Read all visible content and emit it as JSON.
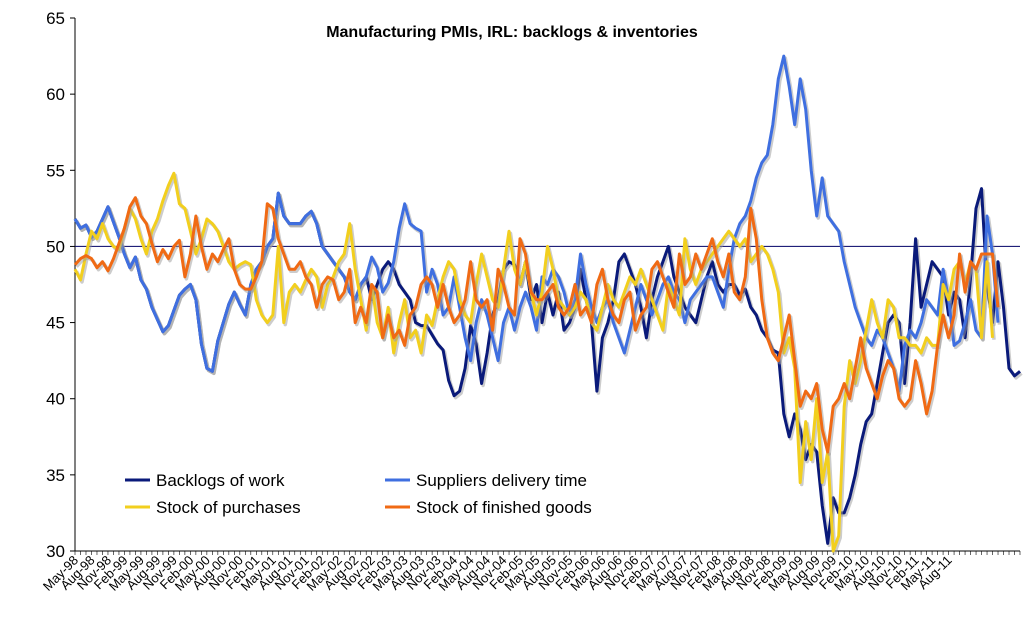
{
  "chart_data": {
    "type": "line",
    "title": "Manufacturing PMIs, IRL: backlogs & inventories",
    "xlabel": "",
    "ylabel": "",
    "ylim": [
      30,
      65
    ],
    "y_ticks": [
      "30",
      "35",
      "40",
      "45",
      "50",
      "55",
      "60",
      "65"
    ],
    "reference_line": 50,
    "x_tick_labels": [
      "May-98",
      "Aug-98",
      "Nov-98",
      "Feb-99",
      "May-99",
      "Aug-99",
      "Nov-99",
      "Feb-00",
      "May-00",
      "Aug-00",
      "Nov-00",
      "Feb-01",
      "May-01",
      "Aug-01",
      "Nov-01",
      "Feb-02",
      "May-02",
      "Aug-02",
      "Nov-02",
      "Feb-03",
      "May-03",
      "Aug-03",
      "Nov-03",
      "Feb-04",
      "May-04",
      "Aug-04",
      "Nov-04",
      "Feb-05",
      "May-05",
      "Aug-05",
      "Nov-05",
      "Feb-06",
      "May-06",
      "Aug-06",
      "Nov-06",
      "Feb-07",
      "May-07",
      "Aug-07",
      "Nov-07",
      "Feb-08",
      "May-08",
      "Aug-08",
      "Nov-08",
      "Feb-09",
      "May-09",
      "Aug-09",
      "Nov-09",
      "Feb-10",
      "May-10",
      "Aug-10",
      "Nov-10",
      "Feb-11",
      "May-11",
      "Aug-11"
    ],
    "legend_position": "bottom-left",
    "colors": {
      "backlogs": "#0a1a7a",
      "suppliers": "#3f6fe0",
      "purchases": "#f2cf1e",
      "finished": "#f06a14",
      "refline": "#000066"
    },
    "series": [
      {
        "name": "Backlogs of work",
        "key": "backlogs",
        "values": [
          51.8,
          51.2,
          51.4,
          50.6,
          51.0,
          51.8,
          52.6,
          51.6,
          50.6,
          49.5,
          48.6,
          49.3,
          47.8,
          47.2,
          46.0,
          45.2,
          44.4,
          44.8,
          45.8,
          46.8,
          47.2,
          47.5,
          46.5,
          43.6,
          42.0,
          41.8,
          43.8,
          45.0,
          46.2,
          47.0,
          46.2,
          45.5,
          47.5,
          48.5,
          49.0,
          50.0,
          50.5,
          53.5,
          52.0,
          51.5,
          51.5,
          51.5,
          52.0,
          52.3,
          51.5,
          50.0,
          49.5,
          49.0,
          48.5,
          48.0,
          47.0,
          46.5,
          47.5,
          48.0,
          46.5,
          47.5,
          48.5,
          49.0,
          48.5,
          47.5,
          47.0,
          46.5,
          45.0,
          44.8,
          44.8,
          44.2,
          43.6,
          43.2,
          41.2,
          40.2,
          40.5,
          42.0,
          44.8,
          43.6,
          41.0,
          43.0,
          45.5,
          46.5,
          48.5,
          49.0,
          48.8,
          47.5,
          49.0,
          46.5,
          47.5,
          45.0,
          47.0,
          45.5,
          47.0,
          44.5,
          45.0,
          46.0,
          48.5,
          46.5,
          45.0,
          40.5,
          44.0,
          45.0,
          46.5,
          49.0,
          49.5,
          48.5,
          47.5,
          46.0,
          44.0,
          46.5,
          48.0,
          49.0,
          50.0,
          48.0,
          47.0,
          46.0,
          45.5,
          45.0,
          46.5,
          48.0,
          49.0,
          47.5,
          47.0,
          47.5,
          47.5,
          46.8,
          47.2,
          46.0,
          45.5,
          44.5,
          44.0,
          43.2,
          43.0,
          39.0,
          37.5,
          39.0,
          38.0,
          36.0,
          37.0,
          36.5,
          33.0,
          30.5,
          33.5,
          32.5,
          32.5,
          33.5,
          35.0,
          37.0,
          38.5,
          39.0,
          41.0,
          43.0,
          45.0,
          45.5,
          45.0,
          41.0,
          45.0,
          50.5,
          46.0,
          47.5,
          49.0,
          48.5,
          48.0,
          45.5,
          47.0,
          46.5,
          44.0,
          48.0,
          52.5,
          53.8,
          47.5,
          45.0,
          49.0,
          46.0,
          42.0,
          41.5,
          41.8
        ]
      },
      {
        "name": "Suppliers delivery time",
        "key": "suppliers",
        "values": [
          51.8,
          51.2,
          51.4,
          50.6,
          51.0,
          51.8,
          52.6,
          51.6,
          50.6,
          49.5,
          48.6,
          49.3,
          47.8,
          47.2,
          46.0,
          45.2,
          44.4,
          44.8,
          45.8,
          46.8,
          47.2,
          47.5,
          46.5,
          43.6,
          42.0,
          41.8,
          43.8,
          45.0,
          46.2,
          47.0,
          46.2,
          45.5,
          47.5,
          48.5,
          49.0,
          50.0,
          50.5,
          53.5,
          52.0,
          51.5,
          51.5,
          51.5,
          52.0,
          52.3,
          51.5,
          50.0,
          49.5,
          49.0,
          48.5,
          48.0,
          47.0,
          46.5,
          47.5,
          48.0,
          49.3,
          48.6,
          47.0,
          47.6,
          49.0,
          51.2,
          52.8,
          51.5,
          51.2,
          51.0,
          47.0,
          48.5,
          47.5,
          45.5,
          46.0,
          48.0,
          46.0,
          44.0,
          42.5,
          45.0,
          46.5,
          45.5,
          44.0,
          42.5,
          45.0,
          46.0,
          44.5,
          46.0,
          47.0,
          46.0,
          44.5,
          48.0,
          47.5,
          48.5,
          48.0,
          47.0,
          45.5,
          46.5,
          49.5,
          47.5,
          46.0,
          45.0,
          46.0,
          46.5,
          45.0,
          44.0,
          43.0,
          44.5,
          46.0,
          47.5,
          46.5,
          45.5,
          46.5,
          47.5,
          48.0,
          47.0,
          46.5,
          45.0,
          46.5,
          47.0,
          47.5,
          48.0,
          48.0,
          47.0,
          46.0,
          48.5,
          50.5,
          51.5,
          52.0,
          53.0,
          54.5,
          55.5,
          56.0,
          58.0,
          61.0,
          62.5,
          60.5,
          58.0,
          61.0,
          59.0,
          55.0,
          52.0,
          54.5,
          52.0,
          51.5,
          51.0,
          49.0,
          47.5,
          46.0,
          45.0,
          44.0,
          43.5,
          44.5,
          44.0,
          43.0,
          42.0,
          40.5,
          43.5,
          44.5,
          44.0,
          45.0,
          46.5,
          46.0,
          45.5,
          48.5,
          46.5,
          43.5,
          43.8,
          45.0,
          46.5,
          44.5,
          44.0,
          52.0,
          49.5,
          45.0
        ]
      },
      {
        "name": "Stock of purchases",
        "key": "purchases",
        "values": [
          48.5,
          47.8,
          49.5,
          51.0,
          50.5,
          51.5,
          50.5,
          50.0,
          49.8,
          51.2,
          52.5,
          51.8,
          50.5,
          49.5,
          51.0,
          51.8,
          53.0,
          54.0,
          54.8,
          52.8,
          52.5,
          51.0,
          49.5,
          50.5,
          51.8,
          51.5,
          51.0,
          50.0,
          49.0,
          48.5,
          48.8,
          49.0,
          48.8,
          46.5,
          45.5,
          45.0,
          45.5,
          50.0,
          45.0,
          47.0,
          47.5,
          47.0,
          47.8,
          48.5,
          48.0,
          46.0,
          47.5,
          48.0,
          49.0,
          49.5,
          51.5,
          48.5,
          46.5,
          44.5,
          47.5,
          45.0,
          44.0,
          46.0,
          43.0,
          45.0,
          46.5,
          44.0,
          44.5,
          43.0,
          45.5,
          44.8,
          46.5,
          48.0,
          49.0,
          48.5,
          46.5,
          45.5,
          45.0,
          47.5,
          49.5,
          48.0,
          46.5,
          46.0,
          48.5,
          51.0,
          48.5,
          47.5,
          49.0,
          47.0,
          45.5,
          47.0,
          50.0,
          48.5,
          46.5,
          46.0,
          45.5,
          46.0,
          47.0,
          46.5,
          45.0,
          44.5,
          46.0,
          47.5,
          46.5,
          46.0,
          47.0,
          48.0,
          47.5,
          48.5,
          47.5,
          46.5,
          45.5,
          44.5,
          47.5,
          46.5,
          45.5,
          50.5,
          48.5,
          47.5,
          48.5,
          49.0,
          49.5,
          50.0,
          50.5,
          51.0,
          50.5,
          50.0,
          50.5,
          49.0,
          49.5,
          50.0,
          49.5,
          48.5,
          47.0,
          43.0,
          44.0,
          42.0,
          34.5,
          38.5,
          36.0,
          40.0,
          34.5,
          36.5,
          30.0,
          31.0,
          39.5,
          42.5,
          41.0,
          42.5,
          44.5,
          46.5,
          45.0,
          44.0,
          46.5,
          46.0,
          44.0,
          44.0,
          43.5,
          43.5,
          43.0,
          44.0,
          43.5,
          43.5,
          47.5,
          46.5,
          48.5,
          49.0,
          47.5,
          49.0,
          48.5,
          44.0,
          49.0,
          44.0
        ]
      },
      {
        "name": "Stock of finished goods",
        "key": "finished",
        "values": [
          48.8,
          49.2,
          49.4,
          49.2,
          48.6,
          49.0,
          48.4,
          49.2,
          50.2,
          51.2,
          52.6,
          53.2,
          52.0,
          51.5,
          50.2,
          49.0,
          49.8,
          49.2,
          50.0,
          50.4,
          48.0,
          49.5,
          52.0,
          50.0,
          48.5,
          49.5,
          49.0,
          49.8,
          50.5,
          48.5,
          47.5,
          47.2,
          47.2,
          48.0,
          49.0,
          52.8,
          52.5,
          50.5,
          49.5,
          48.5,
          48.5,
          49.0,
          48.0,
          47.5,
          46.0,
          47.5,
          48.0,
          47.8,
          46.5,
          47.0,
          48.5,
          45.0,
          46.0,
          45.0,
          47.5,
          47.0,
          44.0,
          45.5,
          44.0,
          44.5,
          43.5,
          45.5,
          46.0,
          47.5,
          48.0,
          47.5,
          46.0,
          47.5,
          46.0,
          45.0,
          45.5,
          46.5,
          49.0,
          46.5,
          46.0,
          46.5,
          44.5,
          48.5,
          47.5,
          46.0,
          45.5,
          50.5,
          49.5,
          47.0,
          46.5,
          46.5,
          47.0,
          47.5,
          46.0,
          45.5,
          46.0,
          47.5,
          45.5,
          46.0,
          45.0,
          47.5,
          48.5,
          46.5,
          45.5,
          45.0,
          46.5,
          47.0,
          44.5,
          45.5,
          46.0,
          48.5,
          49.0,
          48.0,
          47.0,
          46.0,
          49.5,
          47.5,
          48.0,
          49.5,
          48.5,
          49.5,
          50.5,
          49.0,
          48.0,
          49.5,
          47.0,
          46.5,
          48.0,
          52.5,
          50.5,
          46.5,
          44.0,
          43.0,
          42.5,
          44.0,
          45.5,
          42.5,
          39.5,
          40.5,
          40.0,
          41.0,
          38.0,
          36.5,
          39.5,
          40.0,
          41.0,
          40.0,
          42.0,
          44.0,
          42.0,
          41.0,
          40.0,
          41.5,
          42.5,
          42.0,
          40.0,
          39.5,
          40.0,
          42.5,
          41.0,
          39.0,
          40.5,
          43.5,
          45.5,
          44.0,
          45.5,
          49.5,
          47.0,
          49.0,
          48.5,
          49.5,
          49.5,
          49.5,
          46.0
        ]
      }
    ]
  }
}
